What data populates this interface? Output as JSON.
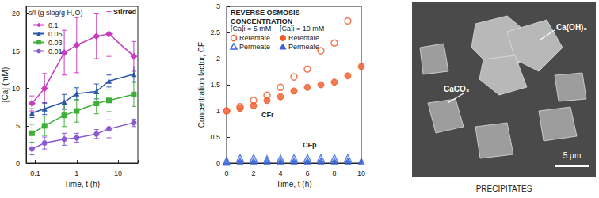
{
  "chart_data": [
    {
      "type": "line",
      "x_label": "Time, t (h)",
      "y_label": "[Ca] (mM)",
      "annotations": [
        "Stirred"
      ],
      "legend_title": "s/l (g slag/g H₂O)",
      "legend": "upper left",
      "log": "x",
      "grid": false,
      "xlim": [
        0.06,
        30
      ],
      "xticks": [
        0.1,
        1,
        10
      ],
      "ylim": [
        0,
        21
      ],
      "yticks": [
        0,
        5,
        10,
        15,
        20
      ],
      "x": [
        0.083,
        0.167,
        0.5,
        1,
        3,
        6,
        24
      ],
      "series": [
        {
          "name": "0.1",
          "color": "#c83cc0",
          "marker": "diamond",
          "line_style": "solid",
          "values": [
            8,
            10,
            14.8,
            15.8,
            17,
            17.3,
            14.3
          ],
          "errors": [
            1,
            2,
            3,
            3.7,
            3,
            3,
            2
          ]
        },
        {
          "name": "0.05",
          "color": "#2a56a8",
          "marker": "triangle",
          "line_style": "solid",
          "values": [
            6.7,
            7.3,
            8.2,
            9.3,
            9.6,
            11,
            11.9
          ],
          "errors": [
            0.6,
            0.8,
            1,
            0.8,
            1,
            0.8,
            1
          ]
        },
        {
          "name": "0.03",
          "color": "#3fae3a",
          "marker": "square",
          "line_style": "solid",
          "values": [
            4,
            5,
            6.4,
            7,
            8,
            8.4,
            9.2
          ],
          "errors": [
            1.2,
            1.3,
            1.5,
            1.5,
            1.4,
            1.5,
            1.6
          ]
        },
        {
          "name": "0.01",
          "color": "#8a5ad0",
          "marker": "circle",
          "line_style": "solid",
          "values": [
            1.9,
            2.7,
            3.2,
            3.4,
            3.9,
            4.6,
            5.4
          ],
          "errors": [
            0.8,
            0.8,
            0.8,
            0.6,
            0.6,
            1.2,
            0.5
          ]
        }
      ]
    },
    {
      "type": "scatter",
      "title": "REVERSE OSMOSIS CONCENTRATION",
      "x_label": "Time, t (h)",
      "y_label": "Concentration factor, CF",
      "annotations": [
        "CFr",
        "CFp"
      ],
      "grid": false,
      "xlim": [
        0,
        10
      ],
      "xticks": [
        0,
        2,
        4,
        6,
        8,
        10
      ],
      "ylim": [
        0,
        3
      ],
      "yticks": [
        0,
        0.5,
        1,
        1.5,
        2,
        2.5,
        3
      ],
      "series": [
        {
          "name": "Retentate",
          "group": "[Ca]i = 5 mM",
          "color": "#f05a28",
          "marker": "circle_open",
          "x": [
            0,
            1,
            2,
            3,
            4,
            5,
            6,
            7,
            8,
            9
          ],
          "values": [
            1.0,
            1.08,
            1.2,
            1.3,
            1.45,
            1.65,
            1.8,
            2.15,
            2.3,
            2.72
          ]
        },
        {
          "name": "Permeate",
          "group": "[Ca]i = 5 mM",
          "color": "#3a66dd",
          "marker": "triangle_open",
          "x": [
            0,
            1,
            2,
            3,
            4,
            5,
            6,
            7,
            8,
            9
          ],
          "values": [
            0.05,
            0.1,
            0.1,
            0.08,
            0.09,
            0.1,
            0.1,
            0.1,
            0.1,
            0.1
          ]
        },
        {
          "name": "Retentate",
          "group": "[Ca]i = 10 mM",
          "color": "#f05a28",
          "marker": "circle",
          "x": [
            0,
            1,
            2,
            3,
            4,
            5,
            6,
            7,
            8,
            9,
            10
          ],
          "values": [
            1.0,
            1.05,
            1.1,
            1.2,
            1.27,
            1.38,
            1.45,
            1.5,
            1.55,
            1.67,
            1.85
          ]
        },
        {
          "name": "Permeate",
          "group": "[Ca]i = 10 mM",
          "color": "#3a66dd",
          "marker": "triangle",
          "x": [
            0,
            1,
            2,
            3,
            4,
            5,
            6,
            7,
            8,
            9,
            10
          ],
          "values": [
            0.03,
            0.04,
            0.04,
            0.04,
            0.04,
            0.04,
            0.04,
            0.04,
            0.04,
            0.04,
            0.04
          ]
        }
      ]
    }
  ],
  "image_panel": {
    "labels": [
      "Ca(OH)₂",
      "CaCO₃"
    ],
    "scale_bar": "5 μm",
    "caption": "PRECIPITATES"
  }
}
